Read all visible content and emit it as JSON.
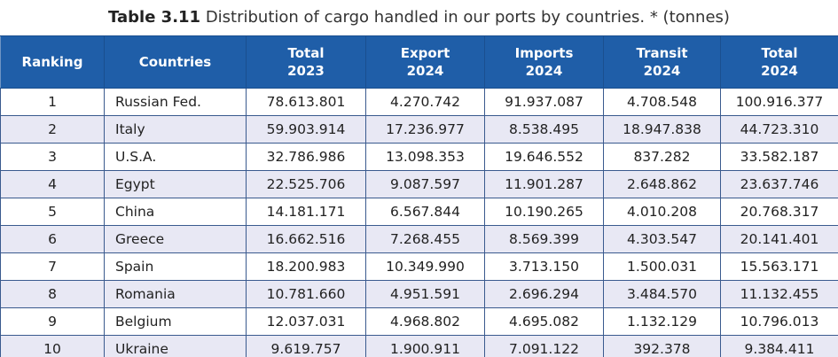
{
  "title": {
    "label": "Table 3.11",
    "text": "Distribution of cargo handled in our ports by countries. * (tonnes)"
  },
  "table": {
    "header": [
      [
        "Ranking"
      ],
      [
        "Countries"
      ],
      [
        "Total",
        "2023"
      ],
      [
        "Export",
        "2024"
      ],
      [
        "Imports",
        "2024"
      ],
      [
        "Transit",
        "2024"
      ],
      [
        "Total",
        "2024"
      ]
    ],
    "rows": [
      [
        "1",
        "Russian Fed.",
        "78.613.801",
        "4.270.742",
        "91.937.087",
        "4.708.548",
        "100.916.377"
      ],
      [
        "2",
        "Italy",
        "59.903.914",
        "17.236.977",
        "8.538.495",
        "18.947.838",
        "44.723.310"
      ],
      [
        "3",
        "U.S.A.",
        "32.786.986",
        "13.098.353",
        "19.646.552",
        "837.282",
        "33.582.187"
      ],
      [
        "4",
        "Egypt",
        "22.525.706",
        "9.087.597",
        "11.901.287",
        "2.648.862",
        "23.637.746"
      ],
      [
        "5",
        "China",
        "14.181.171",
        "6.567.844",
        "10.190.265",
        "4.010.208",
        "20.768.317"
      ],
      [
        "6",
        "Greece",
        "16.662.516",
        "7.268.455",
        "8.569.399",
        "4.303.547",
        "20.141.401"
      ],
      [
        "7",
        "Spain",
        "18.200.983",
        "10.349.990",
        "3.713.150",
        "1.500.031",
        "15.563.171"
      ],
      [
        "8",
        "Romania",
        "10.781.660",
        "4.951.591",
        "2.696.294",
        "3.484.570",
        "11.132.455"
      ],
      [
        "9",
        "Belgium",
        "12.037.031",
        "4.968.802",
        "4.695.082",
        "1.132.129",
        "10.796.013"
      ],
      [
        "10",
        "Ukraine",
        "9.619.757",
        "1.900.911",
        "7.091.122",
        "392.378",
        "9.384.411"
      ]
    ]
  }
}
